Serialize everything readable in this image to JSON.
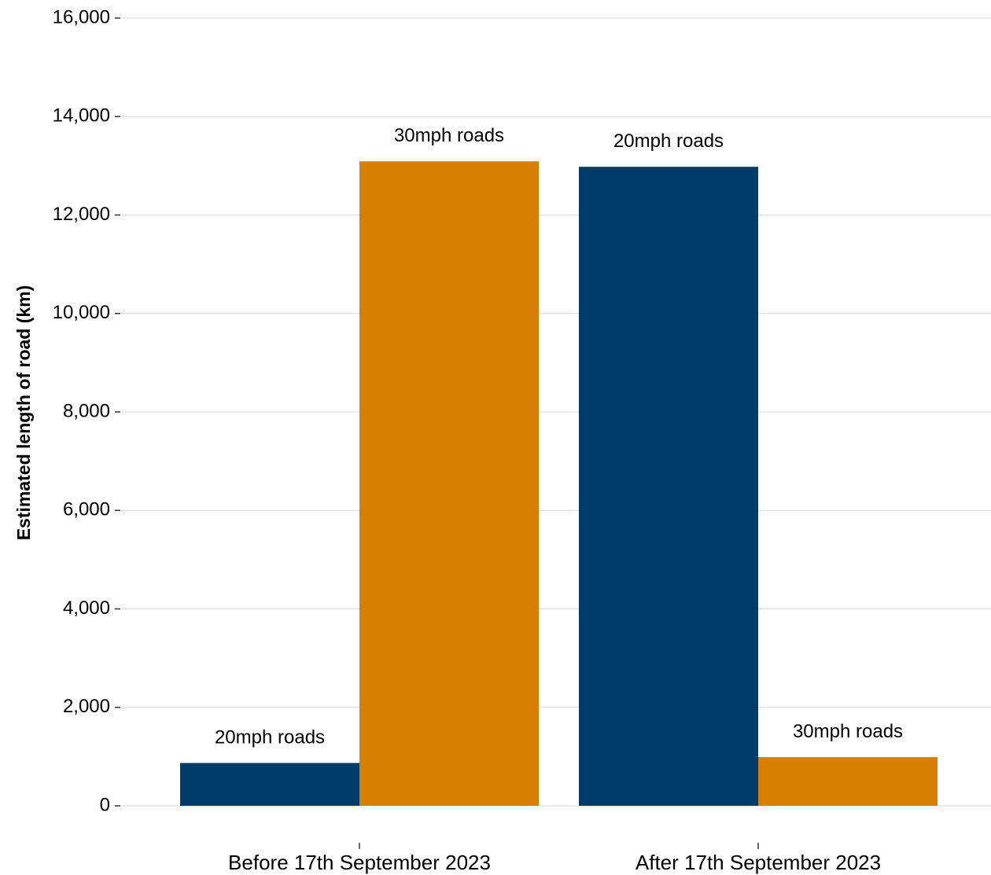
{
  "chart_data": {
    "type": "bar",
    "categories": [
      "Before 17th September 2023",
      "After 17th September 2023"
    ],
    "series": [
      {
        "label": "20mph roads",
        "color": "#003d6b",
        "values": [
          870,
          12980
        ]
      },
      {
        "label": "30mph roads",
        "color": "#d67f00",
        "values": [
          13090,
          990
        ]
      }
    ],
    "ylabel": "Estimated length of road  (km)",
    "xlabel": "",
    "ylim": [
      0,
      16000
    ],
    "yticks": [
      0,
      2000,
      4000,
      6000,
      8000,
      10000,
      12000,
      14000,
      16000
    ],
    "ytick_labels": [
      "0",
      "2,000",
      "4,000",
      "6,000",
      "8,000",
      "10,000",
      "12,000",
      "14,000",
      "16,000"
    ],
    "grid": true,
    "legend": "none"
  }
}
